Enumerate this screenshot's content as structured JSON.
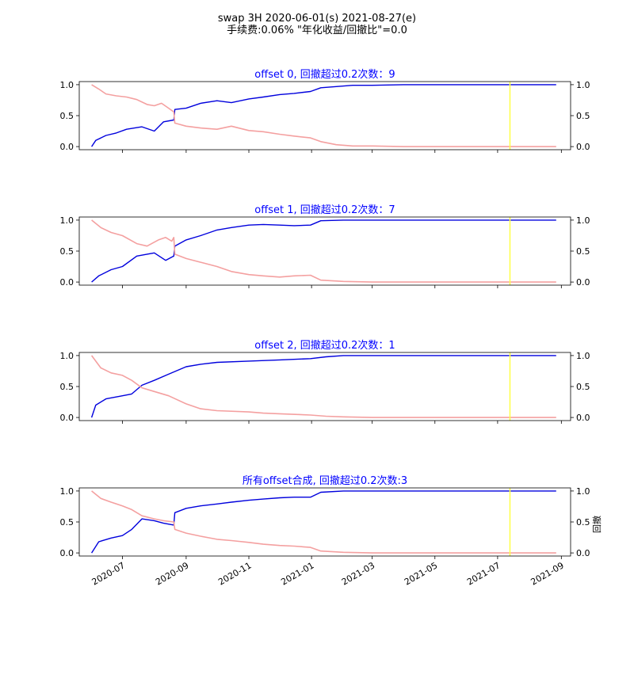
{
  "figure": {
    "title_line1": "swap 3H 2020-06-01(s) 2021-08-27(e)",
    "title_line2": "手续费:0.06% \"年化收益/回撤比\"=0.0",
    "right_ylabel": "回撤",
    "x_ticks": [
      "2020-07",
      "2020-09",
      "2020-11",
      "2021-01",
      "2021-03",
      "2021-05",
      "2021-07",
      "2021-09"
    ],
    "y_ticks": [
      "0.0",
      "0.5",
      "1.0"
    ]
  },
  "colors": {
    "title_blue": "#0000ff",
    "series_a": "#0000dd",
    "series_b": "#f4a0a0",
    "marker": "#ffff44"
  },
  "chart_data": [
    {
      "type": "line",
      "title": "offset 0, 回撤超过0.2次数：9",
      "x_range": [
        "2020-05-20",
        "2021-09-10"
      ],
      "ylim": [
        -0.05,
        1.05
      ],
      "marker_x": "2021-07-13",
      "series": [
        {
          "x": [
            "2020-06-01",
            "2020-06-08",
            "2020-06-15",
            "2020-06-25",
            "2020-07-05",
            "2020-07-15",
            "2020-07-25",
            "2020-08-01",
            "2020-08-08",
            "2020-08-15",
            "2020-08-20",
            "2020-08-21",
            "2020-09-01",
            "2020-09-15",
            "2020-10-01",
            "2020-10-15",
            "2020-11-01",
            "2020-11-15",
            "2020-12-01",
            "2020-12-15",
            "2020-12-31",
            "2021-01-10",
            "2021-01-25",
            "2021-02-10",
            "2021-03-01",
            "2021-04-01",
            "2021-05-01",
            "2021-06-01",
            "2021-07-01",
            "2021-08-01",
            "2021-08-27"
          ],
          "values": [
            1.0,
            0.93,
            0.85,
            0.82,
            0.8,
            0.76,
            0.68,
            0.66,
            0.7,
            0.62,
            0.56,
            0.38,
            0.33,
            0.3,
            0.28,
            0.33,
            0.26,
            0.24,
            0.2,
            0.17,
            0.14,
            0.08,
            0.03,
            0.01,
            0.01,
            0.0,
            0.0,
            0.0,
            0.0,
            0.0,
            0.0
          ]
        },
        {
          "x": [
            "2020-06-01",
            "2020-06-05",
            "2020-06-15",
            "2020-06-25",
            "2020-07-05",
            "2020-07-20",
            "2020-08-01",
            "2020-08-10",
            "2020-08-20",
            "2020-08-21",
            "2020-09-01",
            "2020-09-15",
            "2020-10-01",
            "2020-10-15",
            "2020-11-01",
            "2020-11-15",
            "2020-12-01",
            "2020-12-15",
            "2020-12-31",
            "2021-01-10",
            "2021-01-25",
            "2021-02-10",
            "2021-03-01",
            "2021-04-01",
            "2021-05-01",
            "2021-06-01",
            "2021-07-01",
            "2021-08-01",
            "2021-08-27"
          ],
          "values": [
            0.0,
            0.1,
            0.18,
            0.22,
            0.28,
            0.32,
            0.25,
            0.4,
            0.43,
            0.6,
            0.62,
            0.7,
            0.74,
            0.71,
            0.77,
            0.8,
            0.84,
            0.86,
            0.89,
            0.95,
            0.97,
            0.99,
            0.99,
            1.0,
            1.0,
            1.0,
            1.0,
            1.0,
            1.0
          ]
        }
      ]
    },
    {
      "type": "line",
      "title": "offset 1, 回撤超过0.2次数：7",
      "x_range": [
        "2020-05-20",
        "2021-09-10"
      ],
      "ylim": [
        -0.05,
        1.05
      ],
      "marker_x": "2021-07-13",
      "series": [
        {
          "x": [
            "2020-06-01",
            "2020-06-10",
            "2020-06-20",
            "2020-07-01",
            "2020-07-15",
            "2020-07-25",
            "2020-08-05",
            "2020-08-12",
            "2020-08-18",
            "2020-08-20",
            "2020-08-21",
            "2020-09-01",
            "2020-09-15",
            "2020-10-01",
            "2020-10-15",
            "2020-11-01",
            "2020-11-15",
            "2020-12-01",
            "2020-12-15",
            "2020-12-31",
            "2021-01-10",
            "2021-02-01",
            "2021-03-01",
            "2021-04-01",
            "2021-05-01",
            "2021-06-01",
            "2021-07-01",
            "2021-08-01",
            "2021-08-27"
          ],
          "values": [
            1.0,
            0.88,
            0.8,
            0.75,
            0.62,
            0.58,
            0.68,
            0.72,
            0.66,
            0.72,
            0.45,
            0.38,
            0.32,
            0.25,
            0.17,
            0.12,
            0.1,
            0.08,
            0.1,
            0.11,
            0.03,
            0.01,
            0.0,
            0.0,
            0.0,
            0.0,
            0.0,
            0.0,
            0.0
          ]
        },
        {
          "x": [
            "2020-06-01",
            "2020-06-08",
            "2020-06-20",
            "2020-07-01",
            "2020-07-15",
            "2020-08-01",
            "2020-08-12",
            "2020-08-20",
            "2020-08-21",
            "2020-09-01",
            "2020-09-15",
            "2020-10-01",
            "2020-10-15",
            "2020-11-01",
            "2020-11-15",
            "2020-12-01",
            "2020-12-15",
            "2020-12-31",
            "2021-01-10",
            "2021-02-01",
            "2021-03-01",
            "2021-04-01",
            "2021-05-01",
            "2021-06-01",
            "2021-07-01",
            "2021-08-01",
            "2021-08-27"
          ],
          "values": [
            0.0,
            0.1,
            0.2,
            0.25,
            0.42,
            0.47,
            0.35,
            0.42,
            0.58,
            0.68,
            0.75,
            0.84,
            0.88,
            0.92,
            0.93,
            0.92,
            0.91,
            0.92,
            0.99,
            1.0,
            1.0,
            1.0,
            1.0,
            1.0,
            1.0,
            1.0,
            1.0
          ]
        }
      ]
    },
    {
      "type": "line",
      "title": "offset 2, 回撤超过0.2次数：1",
      "x_range": [
        "2020-05-20",
        "2021-09-10"
      ],
      "ylim": [
        -0.05,
        1.05
      ],
      "marker_x": "2021-07-13",
      "series": [
        {
          "x": [
            "2020-06-01",
            "2020-06-10",
            "2020-06-20",
            "2020-07-01",
            "2020-07-10",
            "2020-07-20",
            "2020-08-01",
            "2020-08-15",
            "2020-09-01",
            "2020-09-15",
            "2020-10-01",
            "2020-11-01",
            "2020-11-15",
            "2020-12-01",
            "2020-12-31",
            "2021-01-15",
            "2021-02-01",
            "2021-03-01",
            "2021-04-01",
            "2021-05-01",
            "2021-06-01",
            "2021-07-01",
            "2021-08-01",
            "2021-08-27"
          ],
          "values": [
            1.0,
            0.8,
            0.72,
            0.68,
            0.6,
            0.48,
            0.42,
            0.35,
            0.22,
            0.14,
            0.11,
            0.09,
            0.07,
            0.06,
            0.04,
            0.02,
            0.01,
            0.0,
            0.0,
            0.0,
            0.0,
            0.0,
            0.0,
            0.0
          ]
        },
        {
          "x": [
            "2020-06-01",
            "2020-06-05",
            "2020-06-15",
            "2020-07-01",
            "2020-07-10",
            "2020-07-20",
            "2020-08-01",
            "2020-08-15",
            "2020-09-01",
            "2020-09-15",
            "2020-10-01",
            "2020-11-01",
            "2020-12-01",
            "2020-12-31",
            "2021-01-15",
            "2021-02-01",
            "2021-03-01",
            "2021-04-01",
            "2021-05-01",
            "2021-06-01",
            "2021-07-01",
            "2021-08-01",
            "2021-08-27"
          ],
          "values": [
            0.0,
            0.2,
            0.3,
            0.35,
            0.38,
            0.52,
            0.6,
            0.7,
            0.82,
            0.86,
            0.89,
            0.91,
            0.93,
            0.95,
            0.98,
            1.0,
            1.0,
            1.0,
            1.0,
            1.0,
            1.0,
            1.0,
            1.0
          ]
        }
      ]
    },
    {
      "type": "line",
      "title": "所有offset合成, 回撤超过0.2次数:3",
      "x_range": [
        "2020-05-20",
        "2021-09-10"
      ],
      "ylim": [
        -0.05,
        1.05
      ],
      "marker_x": "2021-07-13",
      "series": [
        {
          "x": [
            "2020-06-01",
            "2020-06-10",
            "2020-06-20",
            "2020-07-01",
            "2020-07-10",
            "2020-07-20",
            "2020-08-01",
            "2020-08-10",
            "2020-08-20",
            "2020-08-21",
            "2020-09-01",
            "2020-09-15",
            "2020-10-01",
            "2020-10-15",
            "2020-11-01",
            "2020-11-15",
            "2020-12-01",
            "2020-12-15",
            "2020-12-31",
            "2021-01-10",
            "2021-02-01",
            "2021-03-01",
            "2021-04-01",
            "2021-05-01",
            "2021-06-01",
            "2021-07-01",
            "2021-08-01",
            "2021-08-27"
          ],
          "values": [
            1.0,
            0.88,
            0.82,
            0.76,
            0.7,
            0.6,
            0.55,
            0.52,
            0.5,
            0.38,
            0.32,
            0.27,
            0.22,
            0.2,
            0.17,
            0.14,
            0.12,
            0.11,
            0.09,
            0.03,
            0.01,
            0.0,
            0.0,
            0.0,
            0.0,
            0.0,
            0.0,
            0.0
          ]
        },
        {
          "x": [
            "2020-06-01",
            "2020-06-08",
            "2020-06-20",
            "2020-07-01",
            "2020-07-10",
            "2020-07-20",
            "2020-08-01",
            "2020-08-10",
            "2020-08-20",
            "2020-08-21",
            "2020-09-01",
            "2020-09-15",
            "2020-10-01",
            "2020-10-15",
            "2020-11-01",
            "2020-11-15",
            "2020-12-01",
            "2020-12-15",
            "2020-12-31",
            "2021-01-10",
            "2021-02-01",
            "2021-03-01",
            "2021-04-01",
            "2021-05-01",
            "2021-06-01",
            "2021-07-01",
            "2021-08-01",
            "2021-08-27"
          ],
          "values": [
            0.0,
            0.18,
            0.24,
            0.28,
            0.38,
            0.55,
            0.52,
            0.48,
            0.45,
            0.65,
            0.72,
            0.76,
            0.79,
            0.82,
            0.85,
            0.87,
            0.89,
            0.9,
            0.9,
            0.98,
            1.0,
            1.0,
            1.0,
            1.0,
            1.0,
            1.0,
            1.0,
            1.0
          ]
        }
      ]
    }
  ]
}
